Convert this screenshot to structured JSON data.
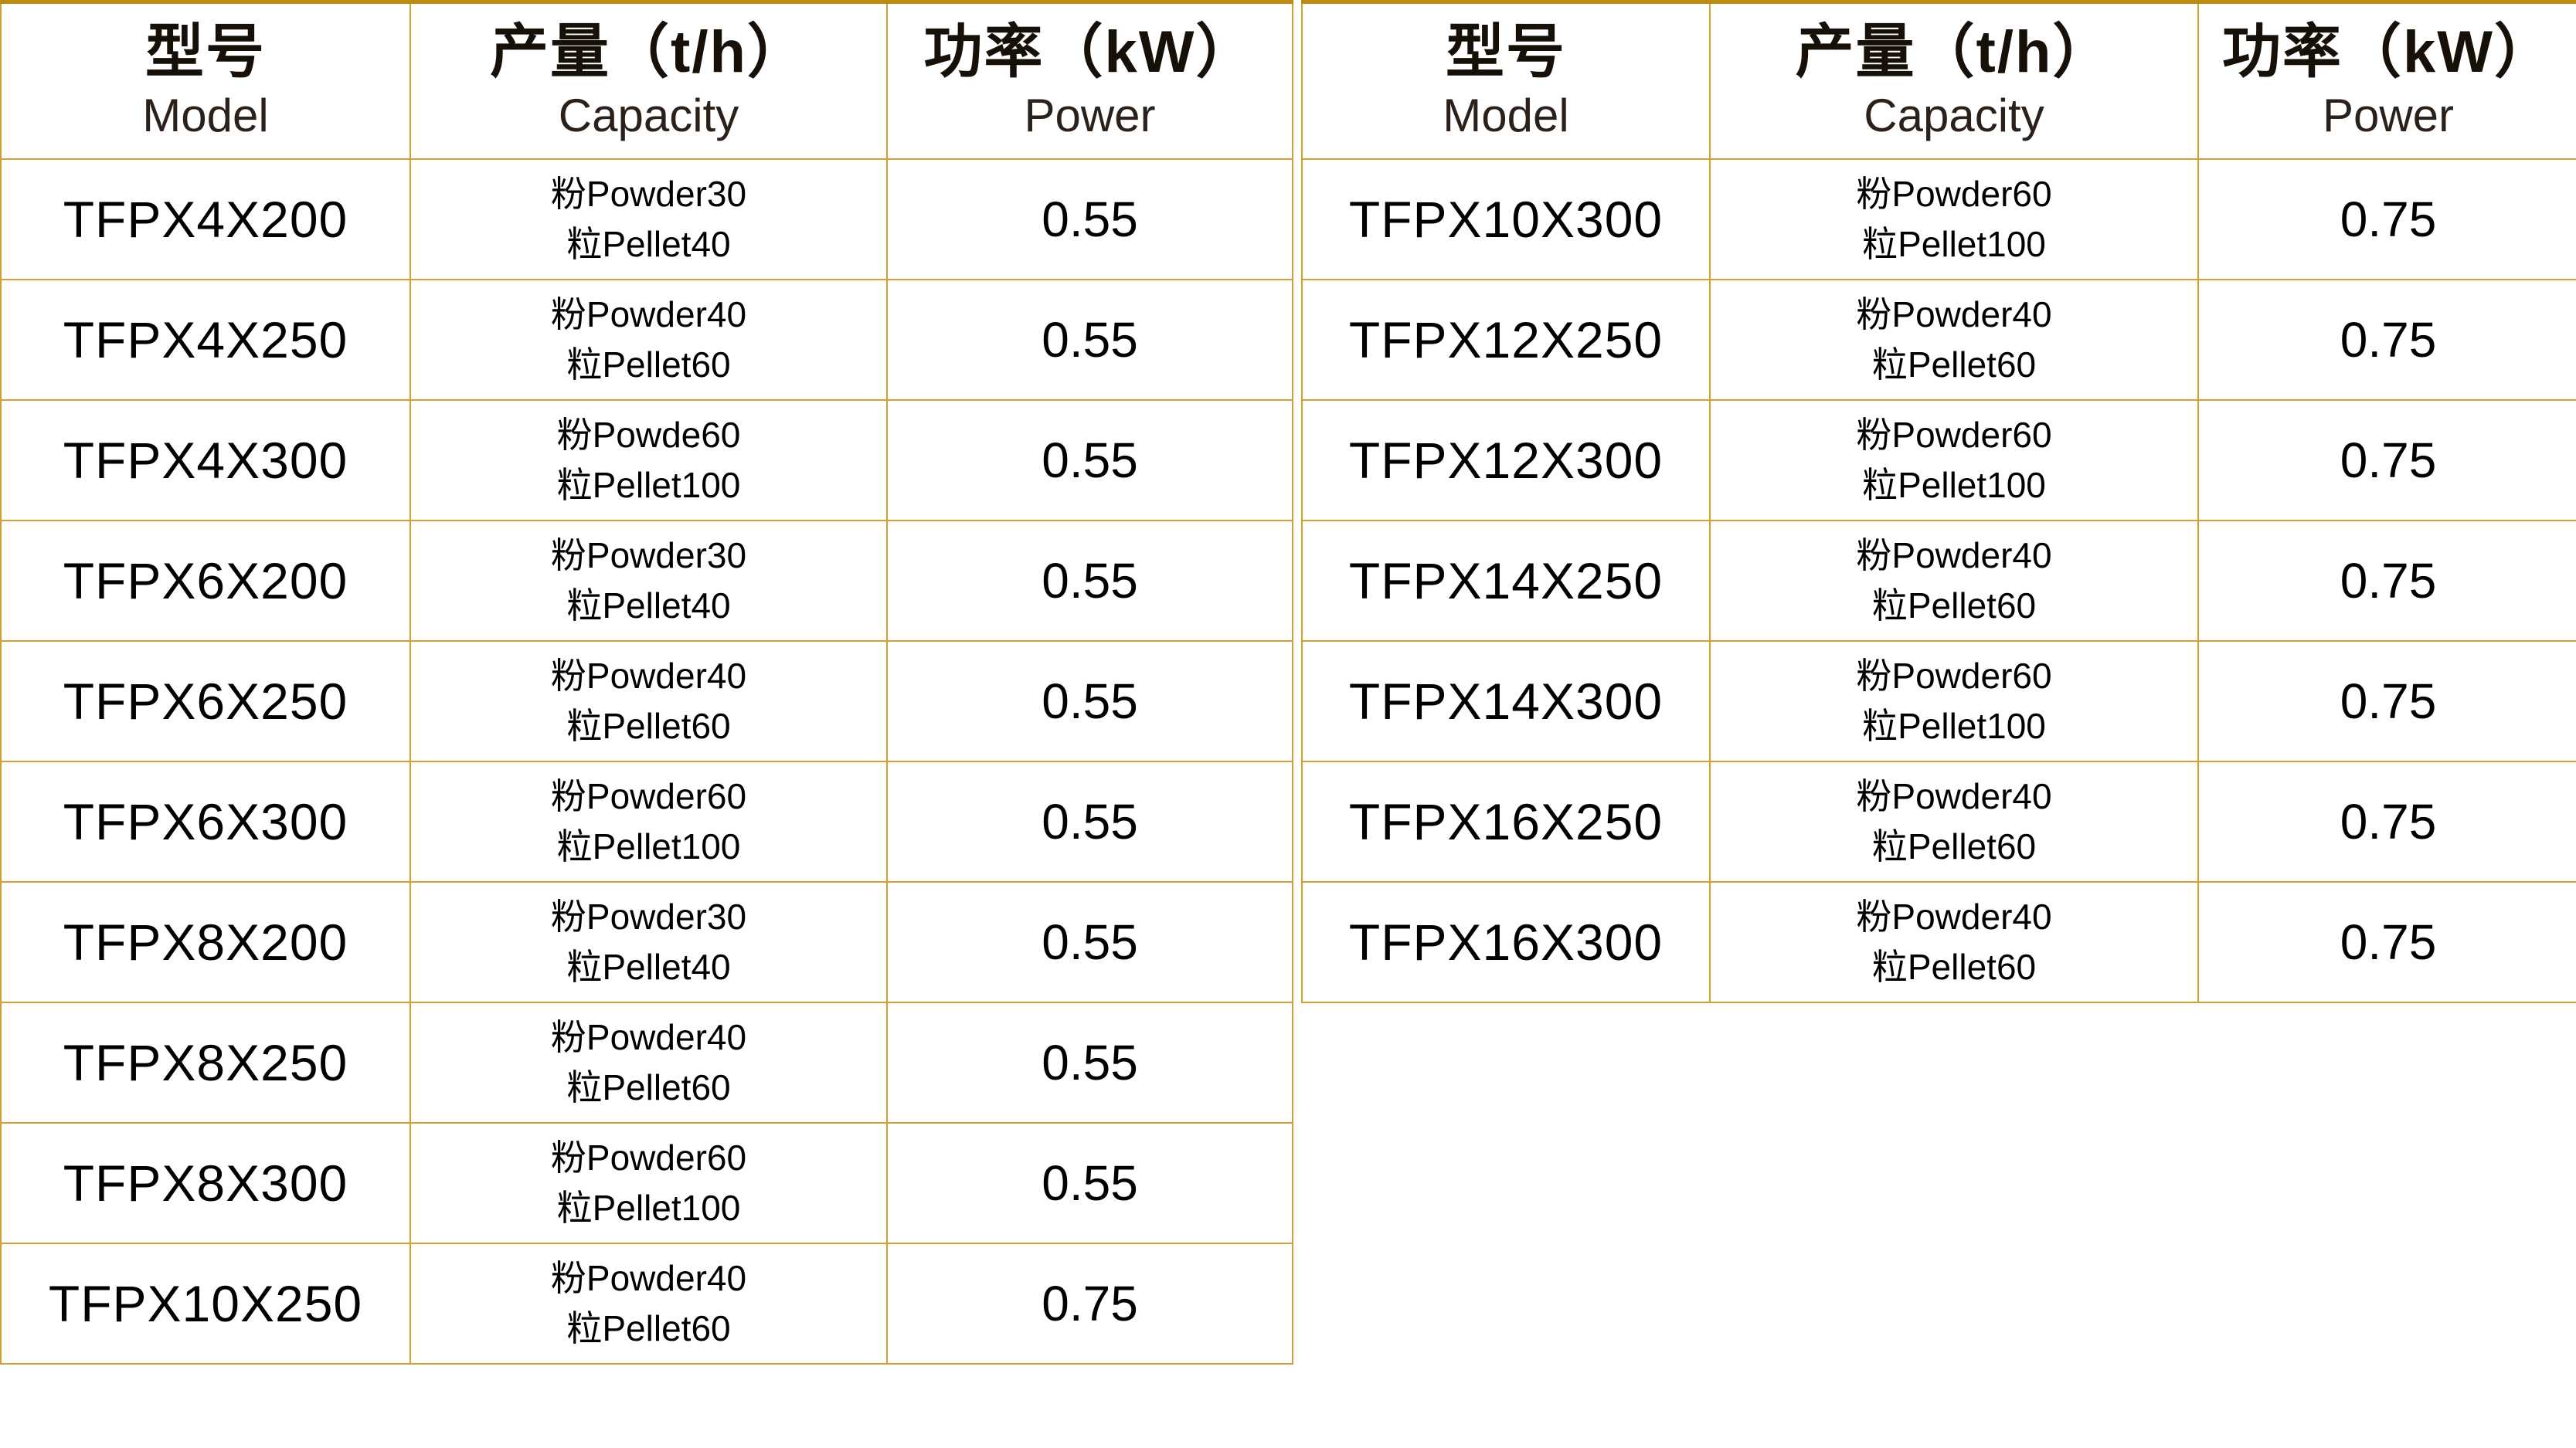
{
  "colors": {
    "border_inner": "#cfa033",
    "border_top": "#bd8b0e",
    "body_text": "#000000",
    "header_text": "#2b211a",
    "background": "#ffffff"
  },
  "left_table": {
    "headers": {
      "model_zh": "型号",
      "model_en": "Model",
      "capacity_zh": "产量（t/h）",
      "capacity_en": "Capacity",
      "power_zh": "功率（kW）",
      "power_en": "Power"
    },
    "rows": [
      {
        "model": "TFPX4X200",
        "capacity_line1": "粉Powder30",
        "capacity_line2": "粒Pellet40",
        "power": "0.55"
      },
      {
        "model": "TFPX4X250",
        "capacity_line1": "粉Powder40",
        "capacity_line2": "粒Pellet60",
        "power": "0.55"
      },
      {
        "model": "TFPX4X300",
        "capacity_line1": "粉Powde60",
        "capacity_line2": "粒Pellet100",
        "power": "0.55"
      },
      {
        "model": "TFPX6X200",
        "capacity_line1": "粉Powder30",
        "capacity_line2": "粒Pellet40",
        "power": "0.55"
      },
      {
        "model": "TFPX6X250",
        "capacity_line1": "粉Powder40",
        "capacity_line2": "粒Pellet60",
        "power": "0.55"
      },
      {
        "model": "TFPX6X300",
        "capacity_line1": "粉Powder60",
        "capacity_line2": "粒Pellet100",
        "power": "0.55"
      },
      {
        "model": "TFPX8X200",
        "capacity_line1": "粉Powder30",
        "capacity_line2": "粒Pellet40",
        "power": "0.55"
      },
      {
        "model": "TFPX8X250",
        "capacity_line1": "粉Powder40",
        "capacity_line2": "粒Pellet60",
        "power": "0.55"
      },
      {
        "model": "TFPX8X300",
        "capacity_line1": "粉Powder60",
        "capacity_line2": "粒Pellet100",
        "power": "0.55"
      },
      {
        "model": "TFPX10X250",
        "capacity_line1": "粉Powder40",
        "capacity_line2": "粒Pellet60",
        "power": "0.75"
      }
    ]
  },
  "right_table": {
    "headers": {
      "model_zh": "型号",
      "model_en": "Model",
      "capacity_zh": "产量（t/h）",
      "capacity_en": "Capacity",
      "power_zh": "功率（kW）",
      "power_en": "Power"
    },
    "rows": [
      {
        "model": "TFPX10X300",
        "capacity_line1": "粉Powder60",
        "capacity_line2": "粒Pellet100",
        "power": "0.75"
      },
      {
        "model": "TFPX12X250",
        "capacity_line1": "粉Powder40",
        "capacity_line2": "粒Pellet60",
        "power": "0.75"
      },
      {
        "model": "TFPX12X300",
        "capacity_line1": "粉Powder60",
        "capacity_line2": "粒Pellet100",
        "power": "0.75"
      },
      {
        "model": "TFPX14X250",
        "capacity_line1": "粉Powder40",
        "capacity_line2": "粒Pellet60",
        "power": "0.75"
      },
      {
        "model": "TFPX14X300",
        "capacity_line1": "粉Powder60",
        "capacity_line2": "粒Pellet100",
        "power": "0.75"
      },
      {
        "model": "TFPX16X250",
        "capacity_line1": "粉Powder40",
        "capacity_line2": "粒Pellet60",
        "power": "0.75"
      },
      {
        "model": "TFPX16X300",
        "capacity_line1": "粉Powder40",
        "capacity_line2": "粒Pellet60",
        "power": "0.75"
      }
    ]
  }
}
